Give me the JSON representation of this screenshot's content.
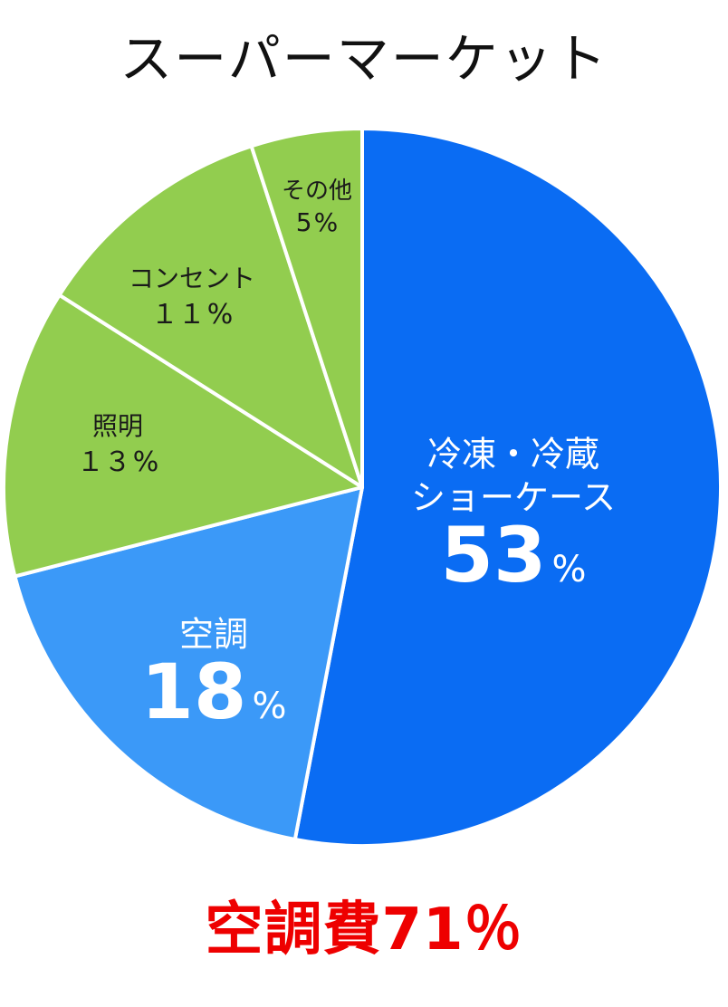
{
  "chart_data": {
    "type": "pie",
    "title": "スーパーマーケット",
    "slices": [
      {
        "label": "冷凍・冷蔵\nショーケース",
        "value": 53,
        "value_label": "53",
        "unit": "%",
        "color": "#0a6cf3",
        "text_color": "#ffffff",
        "label_style": "large"
      },
      {
        "label": "空調",
        "value": 18,
        "value_label": "18",
        "unit": "%",
        "color": "#3b99f8",
        "text_color": "#ffffff",
        "label_style": "large"
      },
      {
        "label": "照明",
        "value": 13,
        "value_label": "１３",
        "unit": "%",
        "color": "#92cd4f",
        "text_color": "#1a1a1a",
        "label_style": "small"
      },
      {
        "label": "コンセント",
        "value": 11,
        "value_label": "１１",
        "unit": "%",
        "color": "#92cd4f",
        "text_color": "#1a1a1a",
        "label_style": "small"
      },
      {
        "label": "その他",
        "value": 5,
        "value_label": "5",
        "unit": "%",
        "color": "#92cd4f",
        "text_color": "#1a1a1a",
        "label_style": "small"
      }
    ],
    "start": "12 o'clock",
    "direction": "clockwise",
    "slice_border_color": "#ffffff",
    "legend": "none"
  },
  "summary_text": "空調費71％"
}
